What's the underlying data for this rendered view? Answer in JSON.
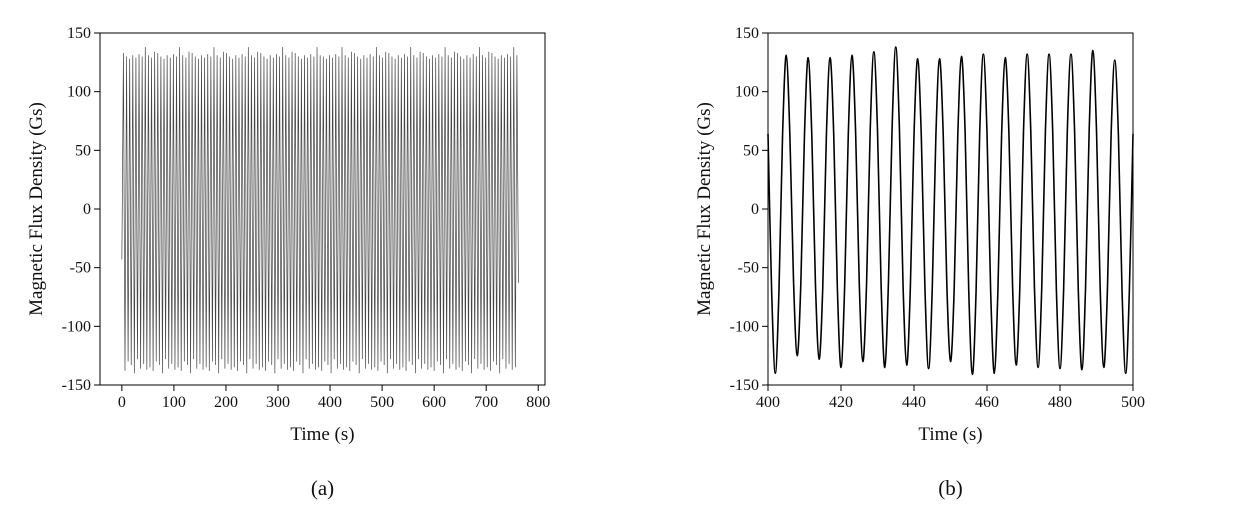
{
  "chart_data": [
    {
      "type": "line",
      "xlabel": "Time (s)",
      "ylabel": "Magnetic Flux Density (Gs)",
      "caption": "(a)",
      "color": "#444444",
      "xlim": [
        -42,
        813
      ],
      "ylim": [
        -150,
        150
      ],
      "xticks": [
        0,
        100,
        200,
        300,
        400,
        500,
        600,
        700,
        800
      ],
      "yticks": [
        -150,
        -100,
        -50,
        0,
        50,
        100,
        150
      ],
      "x": [
        0,
        3,
        6,
        9,
        12,
        15,
        18,
        21,
        24,
        27,
        30,
        33,
        36,
        39,
        42,
        45,
        48,
        51,
        54,
        57,
        60,
        63,
        66,
        69,
        72,
        75,
        78,
        81,
        84,
        87,
        90,
        93,
        96,
        99,
        102,
        105,
        108,
        111,
        114,
        117,
        120,
        123,
        126,
        129,
        132,
        135,
        138,
        141,
        144,
        147,
        150,
        153,
        156,
        159,
        162,
        165,
        168,
        171,
        174,
        177,
        180,
        183,
        186,
        189,
        192,
        195,
        198,
        201,
        204,
        207,
        210,
        213,
        216,
        219,
        222,
        225,
        228,
        231,
        234,
        237,
        240,
        243,
        246,
        249,
        252,
        255,
        258,
        261,
        264,
        267,
        270,
        273,
        276,
        279,
        282,
        285,
        288,
        291,
        294,
        297,
        300,
        303,
        306,
        309,
        312,
        315,
        318,
        321,
        324,
        327,
        330,
        333,
        336,
        339,
        342,
        345,
        348,
        351,
        354,
        357,
        360,
        363,
        366,
        369,
        372,
        375,
        378,
        381,
        384,
        387,
        390,
        393,
        396,
        399,
        402,
        405,
        408,
        411,
        414,
        417,
        420,
        423,
        426,
        429,
        432,
        435,
        438,
        441,
        444,
        447,
        450,
        453,
        456,
        459,
        462,
        465,
        468,
        471,
        474,
        477,
        480,
        483,
        486,
        489,
        492,
        495,
        498,
        501,
        504,
        507,
        510,
        513,
        516,
        519,
        522,
        525,
        528,
        531,
        534,
        537,
        540,
        543,
        546,
        549,
        552,
        555,
        558,
        561,
        564,
        567,
        570,
        573,
        576,
        579,
        582,
        585,
        588,
        591,
        594,
        597,
        600,
        603,
        606,
        609,
        612,
        615,
        618,
        621,
        624,
        627,
        630,
        633,
        636,
        639,
        642,
        645,
        648,
        651,
        654,
        657,
        660,
        663,
        666,
        669,
        672,
        675,
        678,
        681,
        684,
        687,
        690,
        693,
        696,
        699,
        702,
        705,
        708,
        711,
        714,
        717,
        720,
        723,
        726,
        729,
        732,
        735,
        738,
        741,
        744,
        747,
        750,
        753,
        756,
        759,
        762
      ],
      "values": [
        -43,
        133,
        -138,
        130,
        -130,
        128,
        -133,
        131,
        -140,
        129,
        -128,
        132,
        -136,
        130,
        -132,
        138,
        -137,
        131,
        -135,
        129,
        -138,
        134,
        -130,
        133,
        -133,
        130,
        -140,
        128,
        -128,
        131,
        -136,
        129,
        -132,
        132,
        -137,
        130,
        -135,
        138,
        -138,
        131,
        -130,
        129,
        -133,
        134,
        -140,
        133,
        -128,
        130,
        -136,
        128,
        -132,
        131,
        -137,
        129,
        -135,
        132,
        -138,
        130,
        -130,
        138,
        -133,
        131,
        -140,
        129,
        -128,
        134,
        -136,
        133,
        -132,
        130,
        -137,
        128,
        -135,
        131,
        -138,
        129,
        -130,
        132,
        -133,
        130,
        -140,
        138,
        -128,
        131,
        -136,
        129,
        -132,
        134,
        -137,
        133,
        -135,
        130,
        -138,
        128,
        -130,
        131,
        -133,
        129,
        -140,
        132,
        -128,
        130,
        -136,
        138,
        -132,
        131,
        -137,
        129,
        -135,
        134,
        -138,
        133,
        -130,
        130,
        -133,
        128,
        -140,
        131,
        -128,
        129,
        -136,
        132,
        -132,
        130,
        -137,
        138,
        -135,
        131,
        -138,
        130,
        -130,
        128,
        -133,
        131,
        -140,
        129,
        -128,
        132,
        -136,
        130,
        -132,
        138,
        -137,
        131,
        -135,
        129,
        -138,
        134,
        -130,
        133,
        -133,
        130,
        -140,
        128,
        -128,
        131,
        -136,
        129,
        -132,
        132,
        -137,
        130,
        -135,
        138,
        -138,
        131,
        -130,
        129,
        -133,
        134,
        -140,
        133,
        -128,
        130,
        -136,
        128,
        -132,
        131,
        -137,
        129,
        -135,
        132,
        -138,
        130,
        -130,
        138,
        -133,
        131,
        -140,
        129,
        -128,
        134,
        -136,
        133,
        -132,
        130,
        -137,
        128,
        -135,
        131,
        -138,
        129,
        -130,
        132,
        -133,
        130,
        -140,
        138,
        -128,
        131,
        -136,
        129,
        -132,
        134,
        -137,
        133,
        -135,
        130,
        -138,
        128,
        -130,
        131,
        -133,
        129,
        -140,
        132,
        -128,
        130,
        -136,
        138,
        -132,
        131,
        -137,
        129,
        -135,
        134,
        -138,
        133,
        -130,
        130,
        -133,
        128,
        -140,
        131,
        -128,
        129,
        -136,
        132,
        -132,
        130,
        -137,
        138,
        -135,
        131,
        -63
      ]
    },
    {
      "type": "line",
      "xlabel": "Time (s)",
      "ylabel": "Magnetic Flux Density (Gs)",
      "caption": "(b)",
      "color": "#000000",
      "xlim": [
        400,
        500
      ],
      "ylim": [
        -150,
        150
      ],
      "xticks": [
        400,
        420,
        440,
        460,
        480,
        500
      ],
      "yticks": [
        -150,
        -100,
        -50,
        0,
        50,
        100,
        150
      ],
      "x": [
        400,
        401,
        402,
        403,
        404,
        405,
        406,
        407,
        408,
        409,
        410,
        411,
        412,
        413,
        414,
        415,
        416,
        417,
        418,
        419,
        420,
        421,
        422,
        423,
        424,
        425,
        426,
        427,
        428,
        429,
        430,
        431,
        432,
        433,
        434,
        435,
        436,
        437,
        438,
        439,
        440,
        441,
        442,
        443,
        444,
        445,
        446,
        447,
        448,
        449,
        450,
        451,
        452,
        453,
        454,
        455,
        456,
        457,
        458,
        459,
        460,
        461,
        462,
        463,
        464,
        465,
        466,
        467,
        468,
        469,
        470,
        471,
        472,
        473,
        474,
        475,
        476,
        477,
        478,
        479,
        480,
        481,
        482,
        483,
        484,
        485,
        486,
        487,
        488,
        489,
        490,
        491,
        492,
        493,
        494,
        495,
        496,
        497,
        498,
        499,
        500
      ],
      "values": [
        64,
        -70,
        -140,
        -70,
        64,
        131,
        62,
        -62,
        -125,
        -63,
        64,
        129,
        63,
        -64,
        -128,
        -67,
        63,
        129,
        64,
        -67,
        -135,
        -66,
        64,
        131,
        66,
        -63,
        -130,
        -64,
        67,
        134,
        67,
        -66,
        -135,
        -62,
        69,
        138,
        69,
        -65,
        -133,
        -67,
        63,
        128,
        62,
        -68,
        -136,
        -68,
        63,
        128,
        64,
        -65,
        -130,
        -69,
        63,
        130,
        66,
        -70,
        -141,
        -71,
        65,
        132,
        65,
        -70,
        -140,
        -68,
        63,
        129,
        65,
        -65,
        -133,
        -66,
        66,
        132,
        66,
        -67,
        -135,
        -67,
        66,
        132,
        66,
        -68,
        -136,
        -68,
        66,
        132,
        66,
        -68,
        -137,
        -67,
        68,
        135,
        67,
        -67,
        -135,
        -68,
        63,
        127,
        63,
        -70,
        -140,
        -70,
        64
      ]
    }
  ]
}
